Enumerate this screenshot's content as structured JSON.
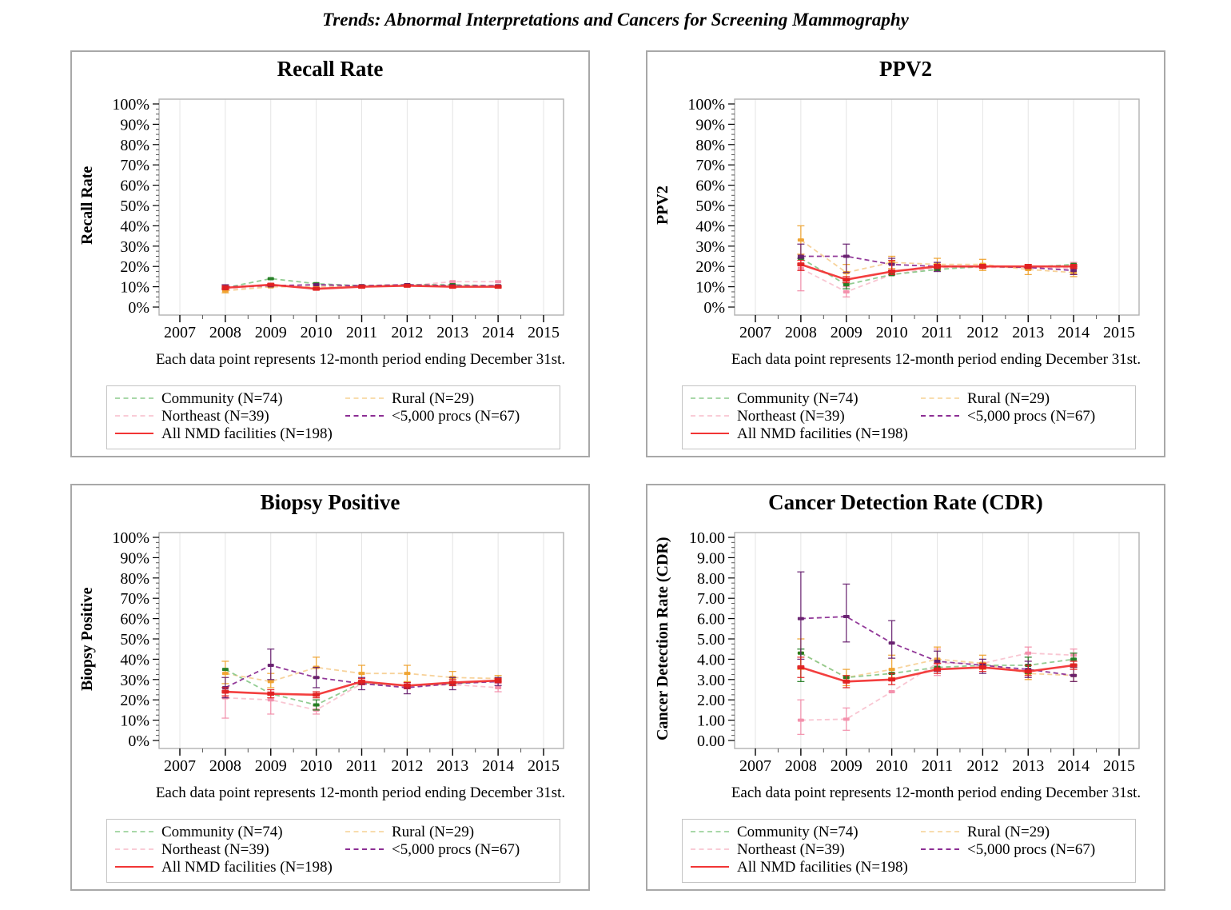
{
  "page": {
    "title": "Trends: Abnormal Interpretations and Cancers for Screening Mammography"
  },
  "caption": "Each data point represents 12-month period ending December 31st.",
  "series_meta": [
    {
      "key": "community",
      "label": "Community (N=74)",
      "line_color": "#8cc98c",
      "marker_color": "#1f7a1f",
      "legend_color": "#a9d8a9",
      "dashed": true
    },
    {
      "key": "rural",
      "label": "Rural (N=29)",
      "line_color": "#f7d095",
      "marker_color": "#efa12b",
      "legend_color": "#f8ddae",
      "dashed": true
    },
    {
      "key": "northeast",
      "label": "Northeast (N=39)",
      "line_color": "#f9c3d0",
      "marker_color": "#f38daa",
      "legend_color": "#f9ccd7",
      "dashed": true
    },
    {
      "key": "procs",
      "label": "<5,000 procs (N=67)",
      "line_color": "#8c2e94",
      "marker_color": "#661e6e",
      "legend_color": "#8c2e94",
      "dashed": true
    },
    {
      "key": "all",
      "label": "All NMD facilities (N=198)",
      "line_color": "#f23535",
      "marker_color": "#e02020",
      "legend_color": "#f23535",
      "dashed": false
    }
  ],
  "x_axis": {
    "tick_labels": [
      "2007",
      "2008",
      "2009",
      "2010",
      "2011",
      "2012",
      "2013",
      "2014",
      "2015"
    ],
    "tick_values": [
      2007,
      2008,
      2009,
      2010,
      2011,
      2012,
      2013,
      2014,
      2015
    ],
    "lim": [
      2007,
      2015
    ]
  },
  "chart_data": [
    {
      "type": "line",
      "title": "Recall Rate",
      "ylabel": "Recall Rate",
      "ylim": [
        0,
        100
      ],
      "y_tick_values": [
        0,
        10,
        20,
        30,
        40,
        50,
        60,
        70,
        80,
        90,
        100
      ],
      "y_tick_labels": [
        "0%",
        "10%",
        "20%",
        "30%",
        "40%",
        "50%",
        "60%",
        "70%",
        "80%",
        "90%",
        "100%"
      ],
      "x": [
        2008,
        2009,
        2010,
        2011,
        2012,
        2013,
        2014
      ],
      "series": [
        {
          "meta": 0,
          "name": "Community (N=74)",
          "values": [
            9.5,
            14,
            11.5,
            10.5,
            11,
            11,
            10.5
          ],
          "err": [
            null,
            null,
            null,
            null,
            null,
            null,
            null
          ]
        },
        {
          "meta": 1,
          "name": "Rural (N=29)",
          "values": [
            8,
            10,
            10,
            10.5,
            10.5,
            10.5,
            10
          ],
          "err": [
            [
              7,
              9
            ],
            null,
            null,
            null,
            null,
            null,
            null
          ]
        },
        {
          "meta": 2,
          "name": "Northeast (N=39)",
          "values": [
            9,
            10,
            10,
            10.5,
            10.5,
            12.5,
            12.5
          ],
          "err": [
            null,
            null,
            null,
            null,
            null,
            null,
            null
          ]
        },
        {
          "meta": 3,
          "name": "<5,000 procs (N=67)",
          "values": [
            10,
            10.5,
            11,
            10.5,
            11,
            10.5,
            10.5
          ],
          "err": [
            [
              9,
              11
            ],
            null,
            null,
            null,
            null,
            null,
            null
          ]
        },
        {
          "meta": 4,
          "name": "All NMD facilities (N=198)",
          "values": [
            9.5,
            11,
            9,
            10,
            10.5,
            10,
            10
          ],
          "err": [
            [
              8.5,
              10.5
            ],
            null,
            null,
            null,
            null,
            null,
            null
          ]
        }
      ]
    },
    {
      "type": "line",
      "title": "PPV2",
      "ylabel": "PPV2",
      "ylim": [
        0,
        100
      ],
      "y_tick_values": [
        0,
        10,
        20,
        30,
        40,
        50,
        60,
        70,
        80,
        90,
        100
      ],
      "y_tick_labels": [
        "0%",
        "10%",
        "20%",
        "30%",
        "40%",
        "50%",
        "60%",
        "70%",
        "80%",
        "90%",
        "100%"
      ],
      "x": [
        2008,
        2009,
        2010,
        2011,
        2012,
        2013,
        2014
      ],
      "series": [
        {
          "meta": 0,
          "name": "Community (N=74)",
          "values": [
            24,
            11,
            16,
            18.5,
            20,
            19.5,
            21
          ],
          "err": [
            null,
            [
              9,
              13
            ],
            null,
            null,
            null,
            null,
            null
          ]
        },
        {
          "meta": 1,
          "name": "Rural (N=29)",
          "values": [
            33,
            17,
            22,
            21,
            21,
            18.5,
            17
          ],
          "err": [
            [
              26,
              40
            ],
            [
              14,
              21
            ],
            [
              19,
              25
            ],
            [
              18,
              24
            ],
            [
              18,
              23.5
            ],
            [
              16,
              21
            ],
            [
              15,
              19
            ]
          ]
        },
        {
          "meta": 2,
          "name": "Northeast (N=39)",
          "values": [
            19,
            7.5,
            16,
            19.5,
            19.5,
            19.5,
            19
          ],
          "err": [
            [
              8,
              26
            ],
            [
              5,
              10
            ],
            null,
            null,
            null,
            null,
            [
              16,
              22
            ]
          ]
        },
        {
          "meta": 3,
          "name": "<5,000 procs (N=67)",
          "values": [
            25,
            25,
            21,
            20,
            20,
            19.5,
            18
          ],
          "err": [
            [
              24,
              31
            ],
            [
              17,
              31
            ],
            [
              18,
              24
            ],
            [
              17.5,
              22
            ],
            null,
            null,
            [
              16,
              20
            ]
          ]
        },
        {
          "meta": 4,
          "name": "All NMD facilities (N=198)",
          "values": [
            21,
            13.5,
            17.5,
            20,
            20,
            20,
            20
          ],
          "err": [
            [
              18,
              23
            ],
            [
              12,
              15
            ],
            [
              16,
              23
            ],
            [
              19,
              21
            ],
            [
              19,
              21
            ],
            [
              19,
              21
            ],
            [
              19,
              21
            ]
          ]
        }
      ]
    },
    {
      "type": "line",
      "title": "Biopsy Positive",
      "ylabel": "Biopsy Positive",
      "ylim": [
        0,
        100
      ],
      "y_tick_values": [
        0,
        10,
        20,
        30,
        40,
        50,
        60,
        70,
        80,
        90,
        100
      ],
      "y_tick_labels": [
        "0%",
        "10%",
        "20%",
        "30%",
        "40%",
        "50%",
        "60%",
        "70%",
        "80%",
        "90%",
        "100%"
      ],
      "x": [
        2008,
        2009,
        2010,
        2011,
        2012,
        2013,
        2014
      ],
      "series": [
        {
          "meta": 0,
          "name": "Community (N=74)",
          "values": [
            35,
            23,
            17.5,
            28.5,
            27,
            28,
            29.5
          ],
          "err": [
            null,
            null,
            [
              15,
              20
            ],
            null,
            null,
            null,
            null
          ]
        },
        {
          "meta": 1,
          "name": "Rural (N=29)",
          "values": [
            33,
            29,
            36,
            33,
            33,
            31,
            30.5
          ],
          "err": [
            [
              28,
              39
            ],
            [
              26,
              33
            ],
            [
              31,
              41
            ],
            [
              29,
              37
            ],
            [
              29,
              37
            ],
            [
              28,
              34
            ],
            [
              29,
              32
            ]
          ]
        },
        {
          "meta": 2,
          "name": "Northeast (N=39)",
          "values": [
            21,
            20,
            15,
            28,
            26.5,
            27.5,
            26
          ],
          "err": [
            [
              11,
              26
            ],
            [
              13,
              24
            ],
            [
              13,
              17
            ],
            null,
            null,
            null,
            [
              24,
              28
            ]
          ]
        },
        {
          "meta": 3,
          "name": "<5,000 procs (N=67)",
          "values": [
            26,
            37,
            31,
            28,
            26,
            28,
            29
          ],
          "err": [
            [
              21,
              31
            ],
            [
              30,
              45
            ],
            [
              26,
              36
            ],
            [
              25,
              31
            ],
            [
              23,
              28.5
            ],
            [
              25,
              31
            ],
            [
              27,
              31
            ]
          ]
        },
        {
          "meta": 4,
          "name": "All NMD facilities (N=198)",
          "values": [
            24,
            23,
            22.5,
            29,
            27,
            28.5,
            29.5
          ],
          "err": [
            [
              22,
              26
            ],
            [
              21,
              25
            ],
            [
              21,
              24
            ],
            [
              27.5,
              30.5
            ],
            [
              25.5,
              28.5
            ],
            [
              27,
              30
            ],
            [
              28.5,
              30.5
            ]
          ]
        }
      ]
    },
    {
      "type": "line",
      "title": "Cancer Detection Rate (CDR)",
      "ylabel": "Cancer Detection Rate (CDR)",
      "ylim": [
        0,
        10
      ],
      "y_tick_values": [
        0,
        1,
        2,
        3,
        4,
        5,
        6,
        7,
        8,
        9,
        10
      ],
      "y_tick_labels": [
        "0.00",
        "1.00",
        "2.00",
        "3.00",
        "4.00",
        "5.00",
        "6.00",
        "7.00",
        "8.00",
        "9.00",
        "10.00"
      ],
      "x": [
        2008,
        2009,
        2010,
        2011,
        2012,
        2013,
        2014
      ],
      "series": [
        {
          "meta": 0,
          "name": "Community (N=74)",
          "values": [
            4.3,
            3.1,
            3.3,
            3.6,
            3.7,
            3.7,
            4.0
          ],
          "err": [
            [
              2.9,
              4.5
            ],
            null,
            null,
            null,
            null,
            [
              3.3,
              4.1
            ],
            [
              3.7,
              4.3
            ]
          ]
        },
        {
          "meta": 1,
          "name": "Rural (N=29)",
          "values": [
            4.3,
            3.1,
            3.5,
            4.0,
            3.8,
            3.3,
            3.2
          ],
          "err": [
            [
              3.5,
              5.0
            ],
            [
              2.7,
              3.5
            ],
            [
              3.1,
              4.2
            ],
            [
              3.5,
              4.6
            ],
            [
              3.5,
              4.2
            ],
            [
              3.0,
              3.7
            ],
            [
              2.9,
              3.6
            ]
          ]
        },
        {
          "meta": 2,
          "name": "Northeast (N=39)",
          "values": [
            1.0,
            1.05,
            2.4,
            3.8,
            3.8,
            4.3,
            4.2
          ],
          "err": [
            [
              0.3,
              2.0
            ],
            [
              0.5,
              1.6
            ],
            null,
            [
              3.2,
              4.5
            ],
            null,
            [
              3.9,
              4.6
            ],
            [
              3.9,
              4.5
            ]
          ]
        },
        {
          "meta": 3,
          "name": "<5,000 procs (N=67)",
          "values": [
            6.0,
            6.1,
            4.8,
            3.9,
            3.7,
            3.5,
            3.2
          ],
          "err": [
            [
              4.0,
              8.3
            ],
            [
              4.85,
              7.7
            ],
            [
              4.05,
              5.9
            ],
            [
              3.4,
              4.4
            ],
            [
              3.3,
              4.0
            ],
            [
              3.1,
              3.9
            ],
            [
              2.9,
              3.6
            ]
          ]
        },
        {
          "meta": 4,
          "name": "All NMD facilities (N=198)",
          "values": [
            3.6,
            2.9,
            3.0,
            3.5,
            3.6,
            3.4,
            3.7
          ],
          "err": [
            [
              3.1,
              4.1
            ],
            [
              2.6,
              3.2
            ],
            [
              2.75,
              3.3
            ],
            [
              3.3,
              3.8
            ],
            [
              3.4,
              3.8
            ],
            [
              3.2,
              3.7
            ],
            [
              3.5,
              3.9
            ]
          ]
        }
      ]
    }
  ]
}
